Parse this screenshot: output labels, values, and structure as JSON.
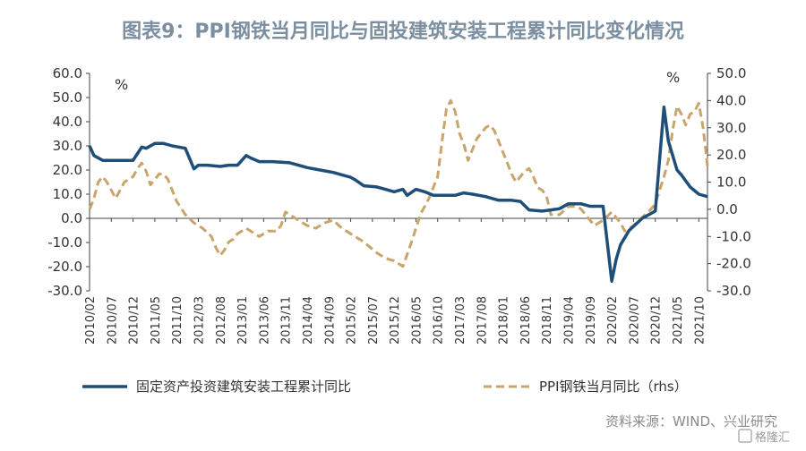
{
  "chart_data": {
    "type": "line",
    "title": "图表9：PPI钢铁当月同比与固投建筑安装工程累计同比变化情况",
    "left_unit": "%",
    "right_unit": "%",
    "left_ticks": [
      "60.0",
      "50.0",
      "40.0",
      "30.0",
      "20.0",
      "10.0",
      "0.0",
      "-10.0",
      "-20.0",
      "-30.0"
    ],
    "right_ticks": [
      "50.0",
      "40.0",
      "30.0",
      "20.0",
      "10.0",
      "0.0",
      "-10.0",
      "-20.0",
      "-30.0"
    ],
    "ylim_left": [
      -30,
      60
    ],
    "ylim_right": [
      -30,
      50
    ],
    "x_tick_labels": [
      "2010/02",
      "2010/07",
      "2010/12",
      "2011/05",
      "2011/10",
      "2012/03",
      "2012/08",
      "2013/01",
      "2013/06",
      "2013/11",
      "2014/04",
      "2014/09",
      "2015/02",
      "2015/07",
      "2015/12",
      "2016/05",
      "2016/10",
      "2017/03",
      "2017/08",
      "2018/01",
      "2018/06",
      "2018/11",
      "2019/04",
      "2019/09",
      "2020/02",
      "2020/07",
      "2020/12",
      "2021/05",
      "2021/10"
    ],
    "x_range": [
      "2010/02",
      "2021/12"
    ],
    "series": [
      {
        "name": "固定资产投资建筑安装工程累计同比",
        "axis": "left",
        "color": "#1f4e79",
        "style": "solid",
        "points": [
          [
            "2010/02",
            30
          ],
          [
            "2010/03",
            26
          ],
          [
            "2010/05",
            24
          ],
          [
            "2010/08",
            24
          ],
          [
            "2010/11",
            24
          ],
          [
            "2010/12",
            24
          ],
          [
            "2011/02",
            29.5
          ],
          [
            "2011/03",
            29
          ],
          [
            "2011/05",
            31
          ],
          [
            "2011/07",
            31
          ],
          [
            "2011/09",
            30
          ],
          [
            "2011/12",
            29
          ],
          [
            "2012/02",
            20.5
          ],
          [
            "2012/03",
            22
          ],
          [
            "2012/05",
            22
          ],
          [
            "2012/08",
            21.5
          ],
          [
            "2012/10",
            22
          ],
          [
            "2012/12",
            22
          ],
          [
            "2013/02",
            26
          ],
          [
            "2013/03",
            25
          ],
          [
            "2013/05",
            23.5
          ],
          [
            "2013/08",
            23.5
          ],
          [
            "2013/12",
            23
          ],
          [
            "2014/02",
            22
          ],
          [
            "2014/04",
            21
          ],
          [
            "2014/07",
            20
          ],
          [
            "2014/10",
            19
          ],
          [
            "2014/12",
            18
          ],
          [
            "2015/02",
            17
          ],
          [
            "2015/03",
            16
          ],
          [
            "2015/05",
            13.5
          ],
          [
            "2015/08",
            13
          ],
          [
            "2015/10",
            12
          ],
          [
            "2015/12",
            11
          ],
          [
            "2016/02",
            12
          ],
          [
            "2016/03",
            9.5
          ],
          [
            "2016/05",
            12
          ],
          [
            "2016/07",
            11
          ],
          [
            "2016/09",
            9.5
          ],
          [
            "2016/12",
            9.5
          ],
          [
            "2017/02",
            9.5
          ],
          [
            "2017/04",
            10.5
          ],
          [
            "2017/06",
            10
          ],
          [
            "2017/09",
            9
          ],
          [
            "2017/11",
            8
          ],
          [
            "2017/12",
            7.5
          ],
          [
            "2018/03",
            7.5
          ],
          [
            "2018/05",
            7
          ],
          [
            "2018/07",
            3.5
          ],
          [
            "2018/10",
            3
          ],
          [
            "2018/12",
            3.5
          ],
          [
            "2019/02",
            4
          ],
          [
            "2019/04",
            6
          ],
          [
            "2019/07",
            6
          ],
          [
            "2019/09",
            5
          ],
          [
            "2019/11",
            5
          ],
          [
            "2019/12",
            5
          ],
          [
            "2020/02",
            -26
          ],
          [
            "2020/03",
            -17
          ],
          [
            "2020/04",
            -11
          ],
          [
            "2020/06",
            -5
          ],
          [
            "2020/09",
            0
          ],
          [
            "2020/11",
            2
          ],
          [
            "2020/12",
            3
          ],
          [
            "2021/02",
            46
          ],
          [
            "2021/03",
            32
          ],
          [
            "2021/05",
            20
          ],
          [
            "2021/06",
            18
          ],
          [
            "2021/08",
            13
          ],
          [
            "2021/10",
            10
          ],
          [
            "2021/12",
            9
          ]
        ]
      },
      {
        "name": "PPI钢铁当月同比（rhs）",
        "axis": "right",
        "color": "#c9a46b",
        "style": "dashed",
        "points": [
          [
            "2010/02",
            0
          ],
          [
            "2010/03",
            4
          ],
          [
            "2010/04",
            10
          ],
          [
            "2010/05",
            12
          ],
          [
            "2010/06",
            10
          ],
          [
            "2010/08",
            4
          ],
          [
            "2010/09",
            7
          ],
          [
            "2010/10",
            10
          ],
          [
            "2010/12",
            12
          ],
          [
            "2011/01",
            15
          ],
          [
            "2011/02",
            17
          ],
          [
            "2011/03",
            14
          ],
          [
            "2011/04",
            9
          ],
          [
            "2011/05",
            11
          ],
          [
            "2011/06",
            13
          ],
          [
            "2011/07",
            13
          ],
          [
            "2011/08",
            11
          ],
          [
            "2011/09",
            7
          ],
          [
            "2011/10",
            3
          ],
          [
            "2011/12",
            -2
          ],
          [
            "2012/02",
            -5
          ],
          [
            "2012/04",
            -7
          ],
          [
            "2012/06",
            -10
          ],
          [
            "2012/07",
            -14
          ],
          [
            "2012/08",
            -17
          ],
          [
            "2012/09",
            -15
          ],
          [
            "2012/10",
            -12
          ],
          [
            "2012/11",
            -11
          ],
          [
            "2012/12",
            -9
          ],
          [
            "2013/02",
            -7
          ],
          [
            "2013/03",
            -8
          ],
          [
            "2013/05",
            -10
          ],
          [
            "2013/07",
            -8
          ],
          [
            "2013/09",
            -8
          ],
          [
            "2013/10",
            -6
          ],
          [
            "2013/11",
            -1
          ],
          [
            "2013/12",
            -2
          ],
          [
            "2014/02",
            -4
          ],
          [
            "2014/04",
            -6
          ],
          [
            "2014/06",
            -7
          ],
          [
            "2014/08",
            -5
          ],
          [
            "2014/10",
            -4
          ],
          [
            "2014/12",
            -7
          ],
          [
            "2015/02",
            -9
          ],
          [
            "2015/05",
            -12
          ],
          [
            "2015/08",
            -16
          ],
          [
            "2015/10",
            -18
          ],
          [
            "2015/12",
            -19
          ],
          [
            "2016/01",
            -20
          ],
          [
            "2016/02",
            -21
          ],
          [
            "2016/04",
            -12
          ],
          [
            "2016/06",
            -2
          ],
          [
            "2016/08",
            4
          ],
          [
            "2016/10",
            12
          ],
          [
            "2016/11",
            25
          ],
          [
            "2016/12",
            37
          ],
          [
            "2017/01",
            40
          ],
          [
            "2017/02",
            36
          ],
          [
            "2017/03",
            28
          ],
          [
            "2017/04",
            24
          ],
          [
            "2017/05",
            18
          ],
          [
            "2017/06",
            22
          ],
          [
            "2017/07",
            26
          ],
          [
            "2017/08",
            28
          ],
          [
            "2017/09",
            30
          ],
          [
            "2017/10",
            31
          ],
          [
            "2017/11",
            29
          ],
          [
            "2017/12",
            25
          ],
          [
            "2018/02",
            17
          ],
          [
            "2018/03",
            13
          ],
          [
            "2018/04",
            10
          ],
          [
            "2018/05",
            12
          ],
          [
            "2018/06",
            14
          ],
          [
            "2018/07",
            15
          ],
          [
            "2018/08",
            12
          ],
          [
            "2018/09",
            8
          ],
          [
            "2018/10",
            7
          ],
          [
            "2018/11",
            5
          ],
          [
            "2018/12",
            -2
          ],
          [
            "2019/02",
            -2
          ],
          [
            "2019/04",
            1
          ],
          [
            "2019/06",
            1
          ],
          [
            "2019/07",
            0
          ],
          [
            "2019/09",
            -4
          ],
          [
            "2019/10",
            -6
          ],
          [
            "2019/12",
            -4
          ],
          [
            "2020/02",
            -1
          ],
          [
            "2020/04",
            -5
          ],
          [
            "2020/05",
            -8
          ],
          [
            "2020/07",
            -6
          ],
          [
            "2020/09",
            -3
          ],
          [
            "2020/11",
            0
          ],
          [
            "2020/12",
            2
          ],
          [
            "2021/02",
            12
          ],
          [
            "2021/03",
            18
          ],
          [
            "2021/04",
            29
          ],
          [
            "2021/05",
            38
          ],
          [
            "2021/06",
            35
          ],
          [
            "2021/07",
            31
          ],
          [
            "2021/08",
            35
          ],
          [
            "2021/09",
            36
          ],
          [
            "2021/10",
            39
          ],
          [
            "2021/11",
            30
          ],
          [
            "2021/12",
            16
          ]
        ]
      }
    ],
    "legend": [
      {
        "label": "固定资产投资建筑安装工程累计同比",
        "style": "solid",
        "color": "#1f4e79"
      },
      {
        "label": "PPI钢铁当月同比（rhs）",
        "style": "dashed",
        "color": "#c9a46b"
      }
    ],
    "legend_position": "bottom",
    "grid": false
  },
  "source": "资料来源：WIND、兴业研究",
  "watermark": "格隆汇"
}
